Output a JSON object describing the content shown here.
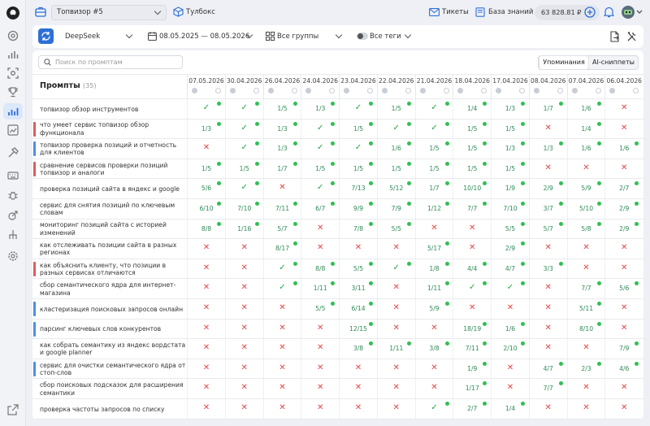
{
  "topbar": {
    "project": "Топвизор #5",
    "toolbox": "Тулбокс",
    "tickets": "Тикеты",
    "knowledge": "База знаний",
    "balance": "63 828.81 ₽"
  },
  "filters": {
    "model": "DeepSeek",
    "daterange": "08.05.2025 — 08.05.2026",
    "groups": "Все группы",
    "tags": "Все теги"
  },
  "main": {
    "search_placeholder": "Поиск по промптам",
    "tabs": [
      "Упоминания",
      "AI-сниппеты"
    ],
    "title": "Промпты",
    "count": "(35)"
  },
  "dates": [
    "07.05.2026",
    "30.04.2026",
    "26.04.2026",
    "24.04.2026",
    "23.04.2026",
    "22.04.2026",
    "21.04.2026",
    "18.04.2026",
    "17.04.2026",
    "08.04.2026",
    "07.04.2026",
    "06.04.2026"
  ],
  "rows": [
    {
      "label": "топвизор обзор инструментов",
      "bar": "",
      "cells": [
        "ok",
        "ok",
        "1/5",
        "1/3",
        "ok",
        "1/5",
        "ok",
        "1/4",
        "1/3",
        "1/7",
        "1/6",
        "x"
      ],
      "dots": [
        1,
        1,
        1,
        1,
        1,
        1,
        1,
        1,
        1,
        1,
        1,
        0
      ]
    },
    {
      "label": "что умеет сервис топвизор обзор функционала",
      "bar": "#e05b5b",
      "cells": [
        "1/3",
        "ok",
        "1/3",
        "ok",
        "1/5",
        "ok",
        "ok",
        "1/5",
        "1/5",
        "x",
        "1/4",
        "x"
      ],
      "dots": [
        1,
        1,
        1,
        1,
        1,
        1,
        1,
        1,
        1,
        0,
        1,
        0
      ]
    },
    {
      "label": "топвизор проверка позиций и отчетность для клиентов",
      "bar": "#4a90e2",
      "cells": [
        "x",
        "ok",
        "1/3",
        "ok",
        "ok",
        "1/6",
        "1/5",
        "1/5",
        "1/3",
        "1/3",
        "1/6",
        "1/6"
      ],
      "dots": [
        0,
        1,
        1,
        1,
        1,
        1,
        1,
        1,
        1,
        1,
        1,
        1
      ]
    },
    {
      "label": "сравнение сервисов проверки позиций топвизор и аналоги",
      "bar": "#e05b5b",
      "cells": [
        "1/5",
        "1/5",
        "1/7",
        "1/5",
        "1/5",
        "1/5",
        "1/5",
        "1/5",
        "1/5",
        "x",
        "x",
        "x"
      ],
      "dots": [
        1,
        1,
        1,
        1,
        1,
        1,
        1,
        1,
        1,
        0,
        0,
        0
      ]
    },
    {
      "label": "проверка позиций сайта в яндекс и google",
      "bar": "",
      "cells": [
        "5/6",
        "ok",
        "x",
        "ok",
        "7/13",
        "5/12",
        "1/7",
        "10/10",
        "1/9",
        "2/9",
        "5/9",
        "2/7"
      ],
      "dots": [
        1,
        1,
        0,
        1,
        1,
        1,
        1,
        1,
        1,
        1,
        1,
        1
      ]
    },
    {
      "label": "сервис для снятия позиций по ключевым словам",
      "bar": "",
      "cells": [
        "6/10",
        "7/10",
        "7/11",
        "6/7",
        "9/9",
        "7/9",
        "1/12",
        "7/7",
        "7/10",
        "3/7",
        "5/10",
        "2/9"
      ],
      "dots": [
        1,
        1,
        1,
        1,
        1,
        1,
        1,
        1,
        1,
        1,
        1,
        1
      ]
    },
    {
      "label": "мониторинг позиций сайта с историей изменений",
      "bar": "",
      "cells": [
        "8/8",
        "1/16",
        "5/7",
        "x",
        "7/8",
        "5/5",
        "x",
        "x",
        "5/5",
        "5/7",
        "5/8",
        "2/9"
      ],
      "dots": [
        1,
        1,
        1,
        0,
        1,
        1,
        0,
        0,
        1,
        1,
        1,
        1
      ]
    },
    {
      "label": "как отслеживать позиции сайта в разных регионах",
      "bar": "",
      "cells": [
        "x",
        "x",
        "8/17",
        "x",
        "x",
        "x",
        "5/17",
        "x",
        "2/9",
        "x",
        "x",
        "x"
      ],
      "dots": [
        0,
        0,
        1,
        0,
        0,
        0,
        1,
        0,
        1,
        0,
        0,
        0
      ]
    },
    {
      "label": "как объяснить клиенту, что позиции в разных сервисах отличаются",
      "bar": "#e05b5b",
      "cells": [
        "x",
        "x",
        "ok",
        "8/8",
        "5/5",
        "ok",
        "1/8",
        "4/4",
        "4/7",
        "3/3",
        "x",
        "x"
      ],
      "dots": [
        0,
        0,
        1,
        1,
        1,
        1,
        1,
        1,
        1,
        1,
        0,
        0
      ]
    },
    {
      "label": "сбор семантического ядра для интернет-магазина",
      "bar": "",
      "cells": [
        "x",
        "x",
        "ok",
        "1/11",
        "3/11",
        "x",
        "1/11",
        "ok",
        "ok",
        "x",
        "7/7",
        "5/6"
      ],
      "dots": [
        0,
        0,
        1,
        1,
        1,
        0,
        1,
        1,
        1,
        0,
        1,
        1
      ]
    },
    {
      "label": "кластеризация поисковых запросов онлайн",
      "bar": "#4a90e2",
      "cells": [
        "x",
        "x",
        "x",
        "5/5",
        "6/14",
        "x",
        "5/9",
        "x",
        "x",
        "x",
        "5/11",
        "x"
      ],
      "dots": [
        0,
        0,
        0,
        1,
        1,
        0,
        1,
        0,
        0,
        0,
        1,
        0
      ]
    },
    {
      "label": "парсинг ключевых слов конкурентов",
      "bar": "#4a90e2",
      "cells": [
        "x",
        "x",
        "x",
        "x",
        "12/15",
        "x",
        "x",
        "18/19",
        "1/6",
        "x",
        "8/10",
        "x"
      ],
      "dots": [
        0,
        0,
        0,
        0,
        1,
        0,
        0,
        1,
        1,
        0,
        1,
        0
      ]
    },
    {
      "label": "как собрать семантику из яндекс вордстата и google planner",
      "bar": "",
      "cells": [
        "x",
        "x",
        "x",
        "x",
        "3/8",
        "1/11",
        "3/8",
        "7/11",
        "2/10",
        "x",
        "x",
        "7/9"
      ],
      "dots": [
        0,
        0,
        0,
        0,
        1,
        1,
        1,
        1,
        1,
        0,
        0,
        1
      ]
    },
    {
      "label": "сервис для очистки семантического ядра от стоп-слов",
      "bar": "#4a90e2",
      "cells": [
        "x",
        "x",
        "x",
        "x",
        "x",
        "x",
        "x",
        "1/9",
        "x",
        "4/7",
        "2/3",
        "4/6"
      ],
      "dots": [
        0,
        0,
        0,
        0,
        0,
        0,
        0,
        1,
        0,
        1,
        1,
        1
      ]
    },
    {
      "label": "сбор поисковых подсказок для расширения семантики",
      "bar": "",
      "cells": [
        "x",
        "x",
        "x",
        "x",
        "x",
        "x",
        "x",
        "1/17",
        "x",
        "7/7",
        "x",
        "x"
      ],
      "dots": [
        0,
        0,
        0,
        0,
        0,
        0,
        0,
        1,
        0,
        1,
        0,
        0
      ]
    },
    {
      "label": "проверка частоты запросов по списку",
      "bar": "",
      "cells": [
        "x",
        "x",
        "x",
        "x",
        "x",
        "x",
        "ok",
        "2/7",
        "1/4",
        "x",
        "x",
        "x"
      ],
      "dots": [
        0,
        0,
        0,
        0,
        0,
        0,
        1,
        1,
        1,
        0,
        0,
        0
      ]
    }
  ]
}
